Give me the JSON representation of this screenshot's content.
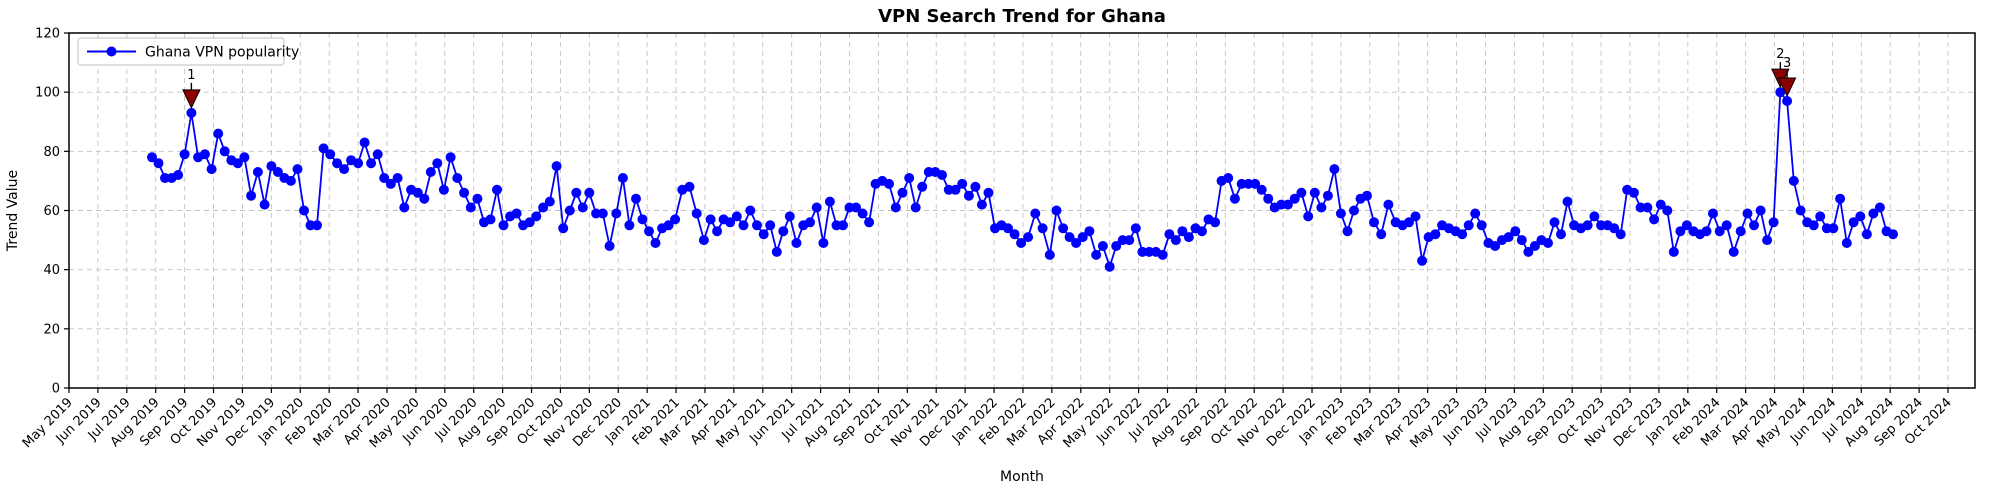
{
  "title": "VPN Search Trend for Ghana",
  "xlabel": "Month",
  "ylabel": "Trend Value",
  "legend": {
    "label": "Ghana VPN popularity",
    "position": "upper left"
  },
  "colors": {
    "line": "#0000ff",
    "marker": "#0000ff",
    "annotation": "#8b0000",
    "grid": "#c2c2c2",
    "axis": "#000000",
    "background": "#ffffff",
    "legend_border": "#cccccc"
  },
  "chart_data": {
    "type": "line",
    "title": "VPN Search Trend for Ghana",
    "xlabel": "Month",
    "ylabel": "Trend Value",
    "ylim": [
      0,
      120
    ],
    "yticks": [
      0,
      20,
      40,
      60,
      80,
      100,
      120
    ],
    "grid": "dashed, both axes",
    "legend_position": "upper left",
    "marker": "circle",
    "series": [
      {
        "name": "Ghana VPN popularity",
        "x_start": "2019-07-28",
        "x_step_days": 7,
        "values": [
          78,
          76,
          71,
          71,
          72,
          79,
          93,
          78,
          79,
          74,
          86,
          80,
          77,
          76,
          78,
          65,
          73,
          62,
          75,
          73,
          71,
          70,
          74,
          60,
          55,
          55,
          81,
          79,
          76,
          74,
          77,
          76,
          83,
          76,
          79,
          71,
          69,
          71,
          61,
          67,
          66,
          64,
          73,
          76,
          67,
          78,
          71,
          66,
          61,
          64,
          56,
          57,
          67,
          55,
          58,
          59,
          55,
          56,
          58,
          61,
          63,
          75,
          54,
          60,
          66,
          61,
          66,
          59,
          59,
          48,
          59,
          71,
          55,
          64,
          57,
          53,
          49,
          54,
          55,
          57,
          67,
          68,
          59,
          50,
          57,
          53,
          57,
          56,
          58,
          55,
          60,
          55,
          52,
          55,
          46,
          53,
          58,
          49,
          55,
          56,
          61,
          49,
          63,
          55,
          55,
          61,
          61,
          59,
          56,
          69,
          70,
          69,
          61,
          66,
          71,
          61,
          68,
          73,
          73,
          72,
          67,
          67,
          69,
          65,
          68,
          62,
          66,
          54,
          55,
          54,
          52,
          49,
          51,
          59,
          54,
          45,
          60,
          54,
          51,
          49,
          51,
          53,
          45,
          48,
          41,
          48,
          50,
          50,
          54,
          46,
          46,
          46,
          45,
          52,
          50,
          53,
          51,
          54,
          53,
          57,
          56,
          70,
          71,
          64,
          69,
          69,
          69,
          67,
          64,
          61,
          62,
          62,
          64,
          66,
          58,
          66,
          61,
          65,
          74,
          59,
          53,
          60,
          64,
          65,
          56,
          52,
          62,
          56,
          55,
          56,
          58,
          43,
          51,
          52,
          55,
          54,
          53,
          52,
          55,
          59,
          55,
          49,
          48,
          50,
          51,
          53,
          50,
          46,
          48,
          50,
          49,
          56,
          52,
          63,
          55,
          54,
          55,
          58,
          55,
          55,
          54,
          52,
          67,
          66,
          61,
          61,
          57,
          62,
          60,
          46,
          53,
          55,
          53,
          52,
          53,
          59,
          53,
          55,
          46,
          53,
          59,
          55,
          60,
          50,
          56,
          100,
          97,
          70,
          60,
          56,
          55,
          58,
          54,
          54,
          64,
          49,
          56,
          58,
          52,
          59,
          61,
          53,
          52
        ]
      }
    ],
    "annotations": [
      {
        "label": "1",
        "date": "2019-09-08",
        "value": 93
      },
      {
        "label": "2",
        "date": "2024-04-07",
        "value": 100
      },
      {
        "label": "3",
        "date": "2024-04-14",
        "value": 97
      }
    ],
    "x_tick_labels": [
      "May 2019",
      "Jun 2019",
      "Jul 2019",
      "Aug 2019",
      "Sep 2019",
      "Oct 2019",
      "Nov 2019",
      "Dec 2019",
      "Jan 2020",
      "Feb 2020",
      "Mar 2020",
      "Apr 2020",
      "May 2020",
      "Jun 2020",
      "Jul 2020",
      "Aug 2020",
      "Sep 2020",
      "Oct 2020",
      "Nov 2020",
      "Dec 2020",
      "Jan 2021",
      "Feb 2021",
      "Mar 2021",
      "Apr 2021",
      "May 2021",
      "Jun 2021",
      "Jul 2021",
      "Aug 2021",
      "Sep 2021",
      "Oct 2021",
      "Nov 2021",
      "Dec 2021",
      "Jan 2022",
      "Feb 2022",
      "Mar 2022",
      "Apr 2022",
      "May 2022",
      "Jun 2022",
      "Jul 2022",
      "Aug 2022",
      "Sep 2022",
      "Oct 2022",
      "Nov 2022",
      "Dec 2022",
      "Jan 2023",
      "Feb 2023",
      "Mar 2023",
      "Apr 2023",
      "May 2023",
      "Jun 2023",
      "Jul 2023",
      "Aug 2023",
      "Sep 2023",
      "Oct 2023",
      "Nov 2023",
      "Dec 2023",
      "Jan 2024",
      "Feb 2024",
      "Mar 2024",
      "Apr 2024",
      "May 2024",
      "Jun 2024",
      "Jul 2024",
      "Aug 2024",
      "Sep 2024",
      "Oct 2024"
    ]
  }
}
